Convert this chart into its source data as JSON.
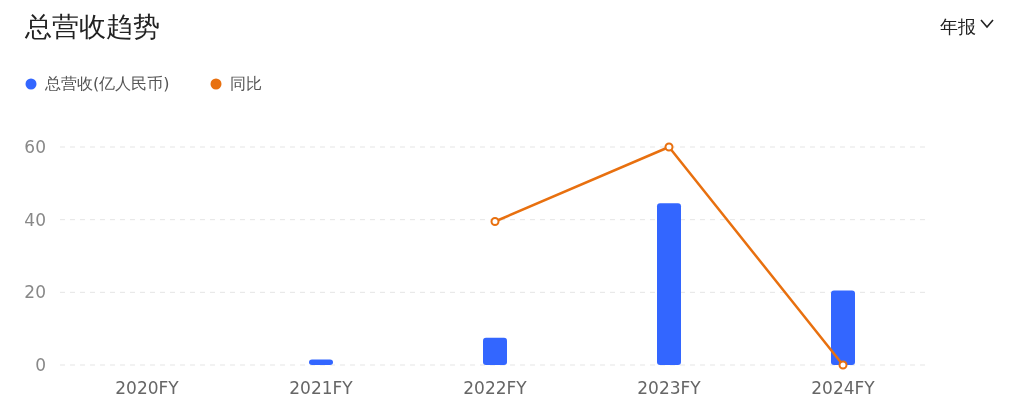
{
  "chart_data": {
    "type": "bar",
    "title": "总营收趋势",
    "annotations": [
      "年报"
    ],
    "categories": [
      "2020FY",
      "2021FY",
      "2022FY",
      "2023FY",
      "2024FY"
    ],
    "series": [
      {
        "name": "总营收(亿人民币)",
        "color": "#3366ff",
        "values": [
          null,
          1.5,
          7.5,
          44.5,
          20.5
        ]
      },
      {
        "name": "同比",
        "type": "line",
        "color": "#e8700f",
        "values": [
          null,
          null,
          39.5,
          60,
          0
        ]
      }
    ],
    "ylim": [
      0,
      60
    ],
    "yticks": [
      0,
      20,
      40,
      60
    ],
    "grid": "y",
    "legend": "top left",
    "marker": "circle"
  }
}
